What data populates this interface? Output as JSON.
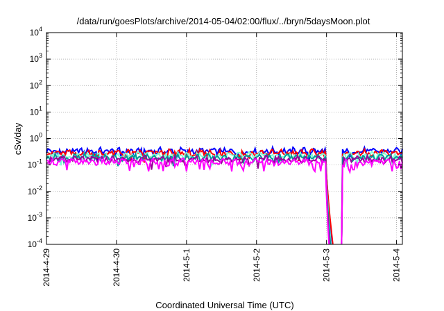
{
  "chart_data": {
    "type": "line",
    "title": "/data/run/goesPlots/archive/2014-05-04/02:00/flux/../bryn/5daysMoon.plot",
    "xlabel": "Coordinated Universal Time (UTC)",
    "ylabel": "cSv/day",
    "y_scale": "log",
    "ylim": [
      0.0001,
      10000
    ],
    "xlim": [
      "2014-04-29 00:00",
      "2014-05-04 02:00"
    ],
    "grid": true,
    "legend": "none",
    "x_ticks": [
      "2014-4-29",
      "2014-4-30",
      "2014-5-1",
      "2014-5-2",
      "2014-5-3",
      "2014-5-4"
    ],
    "y_ticks": [
      {
        "base": "10",
        "exp": "-4",
        "value": 0.0001
      },
      {
        "base": "10",
        "exp": "-3",
        "value": 0.001
      },
      {
        "base": "10",
        "exp": "-2",
        "value": 0.01
      },
      {
        "base": "10",
        "exp": "-1",
        "value": 0.1
      },
      {
        "base": "10",
        "exp": "0",
        "value": 1
      },
      {
        "base": "10",
        "exp": "1",
        "value": 10
      },
      {
        "base": "10",
        "exp": "2",
        "value": 100
      },
      {
        "base": "10",
        "exp": "3",
        "value": 1000
      },
      {
        "base": "10",
        "exp": "4",
        "value": 10000
      }
    ],
    "series": [
      {
        "color": "#0000ff",
        "base_level": 0.33,
        "drop_start": "2014-05-02 23:40",
        "reach_min": "2014-05-03 02:00",
        "recover": "2014-05-03 05:10"
      },
      {
        "color": "#ff0000",
        "base_level": 0.28,
        "drop_start": "2014-05-02 23:40",
        "reach_min": "2014-05-03 02:10",
        "recover": "2014-05-03 05:10"
      },
      {
        "color": "#7fffd4",
        "base_level": 0.22,
        "drop_start": "2014-05-02 23:40",
        "reach_min": "2014-05-03 01:30",
        "recover": "2014-05-03 05:10"
      },
      {
        "color": "#009999",
        "base_level": 0.19,
        "drop_start": "2014-05-02 23:40",
        "reach_min": "2014-05-03 01:20",
        "recover": "2014-05-03 05:10"
      },
      {
        "color": "#990099",
        "base_level": 0.16,
        "drop_start": "2014-05-02 23:40",
        "reach_min": "2014-05-03 01:00",
        "recover": "2014-05-03 05:10"
      },
      {
        "color": "#ff00ff",
        "base_level": 0.13,
        "drop_start": "2014-05-02 23:40",
        "reach_min": "2014-05-03 00:50",
        "recover": "2014-05-03 05:10"
      }
    ]
  }
}
